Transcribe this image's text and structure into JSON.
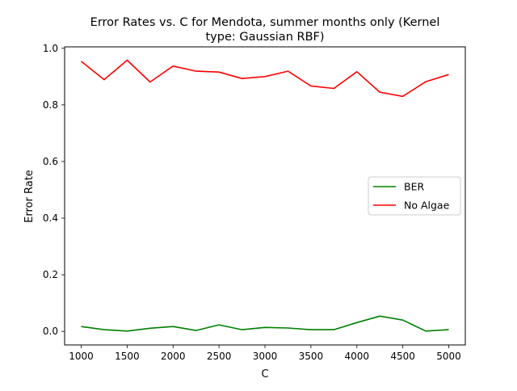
{
  "chart_data": {
    "type": "line",
    "title_line1": "Error Rates vs. C for Mendota, summer months only (Kernel",
    "title_line2": "type: Gaussian RBF)",
    "xlabel": "C",
    "ylabel": "Error Rate",
    "xlim": [
      820,
      5180
    ],
    "ylim": [
      -0.048,
      1.005
    ],
    "xticks": [
      1000,
      1500,
      2000,
      2500,
      3000,
      3500,
      4000,
      4500,
      5000
    ],
    "xtick_labels": [
      "1000",
      "1500",
      "2000",
      "2500",
      "3000",
      "3500",
      "4000",
      "4500",
      "5000"
    ],
    "yticks": [
      0.0,
      0.2,
      0.4,
      0.6,
      0.8,
      1.0
    ],
    "ytick_labels": [
      "0.0",
      "0.2",
      "0.4",
      "0.6",
      "0.8",
      "1.0"
    ],
    "grid": false,
    "legend_position": "center-right",
    "x": [
      1000,
      1250,
      1500,
      1750,
      2000,
      2250,
      2500,
      2750,
      3000,
      3250,
      3500,
      3750,
      4000,
      4250,
      4500,
      4750,
      5000
    ],
    "series": [
      {
        "name": "BER",
        "color": "#008000",
        "values": [
          0.017,
          0.006,
          0.001,
          0.011,
          0.017,
          0.003,
          0.023,
          0.006,
          0.014,
          0.012,
          0.006,
          0.006,
          0.031,
          0.054,
          0.04,
          0.001,
          0.006
        ]
      },
      {
        "name": "No Algae",
        "color": "#ff0000",
        "values": [
          0.954,
          0.889,
          0.958,
          0.881,
          0.937,
          0.919,
          0.916,
          0.893,
          0.9,
          0.919,
          0.867,
          0.858,
          0.917,
          0.845,
          0.83,
          0.882,
          0.907
        ]
      }
    ]
  }
}
